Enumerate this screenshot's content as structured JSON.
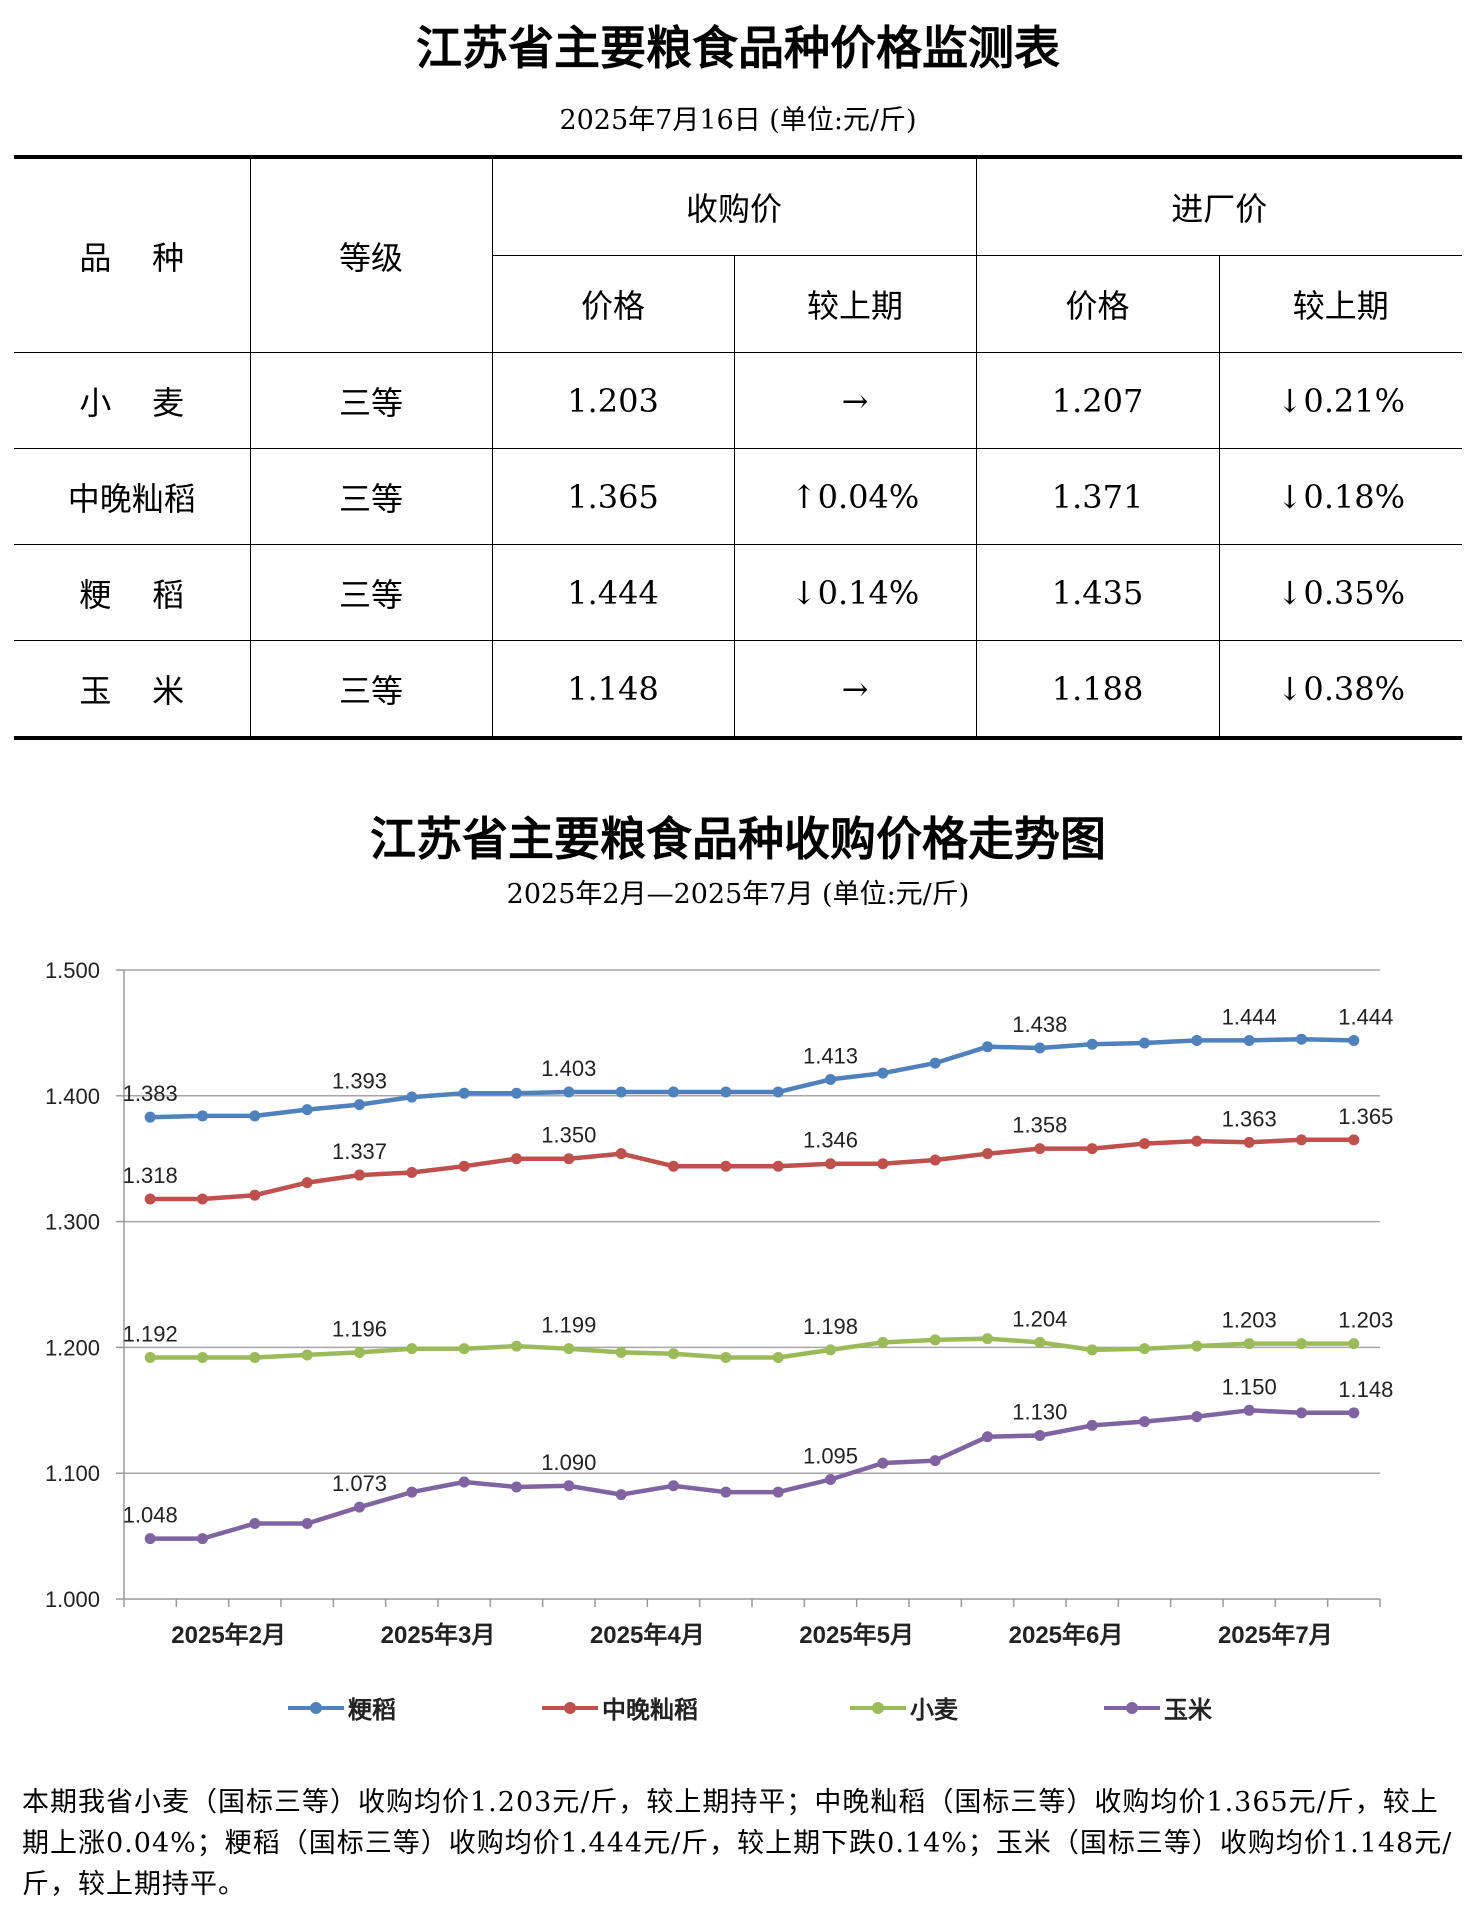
{
  "table_title": "江苏省主要粮食品种价格监测表",
  "table_subtitle": "2025年7月16日  (单位:元/斤)",
  "table": {
    "col_variety": "品    种",
    "col_grade": "等级",
    "col_purchase": "收购价",
    "col_factory": "进厂价",
    "col_price": "价格",
    "col_change": "较上期",
    "rows": [
      {
        "variety": "小    麦",
        "grade": "三等",
        "purchase_price": "1.203",
        "purchase_change": "→",
        "factory_price": "1.207",
        "factory_change": "↓0.21%"
      },
      {
        "variety": "中晚籼稻",
        "grade": "三等",
        "purchase_price": "1.365",
        "purchase_change": "↑0.04%",
        "factory_price": "1.371",
        "factory_change": "↓0.18%"
      },
      {
        "variety": "粳    稻",
        "grade": "三等",
        "purchase_price": "1.444",
        "purchase_change": "↓0.14%",
        "factory_price": "1.435",
        "factory_change": "↓0.35%"
      },
      {
        "variety": "玉    米",
        "grade": "三等",
        "purchase_price": "1.148",
        "purchase_change": "→",
        "factory_price": "1.188",
        "factory_change": "↓0.38%"
      }
    ]
  },
  "chart_title": "江苏省主要粮食品种收购价格走势图",
  "chart_subtitle": "2025年2月—2025年7月  (单位:元/斤)",
  "chart_data": {
    "type": "line",
    "title": "江苏省主要粮食品种收购价格走势图",
    "subtitle": "2025年2月—2025年7月  (单位:元/斤)",
    "xlabel": "",
    "ylabel": "",
    "ylim": [
      1.0,
      1.5
    ],
    "yticks": [
      "1.000",
      "1.100",
      "1.200",
      "1.300",
      "1.400",
      "1.500"
    ],
    "x_month_labels": [
      "2025年2月",
      "2025年3月",
      "2025年4月",
      "2025年5月",
      "2025年6月",
      "2025年7月"
    ],
    "n_points": 24,
    "grid": true,
    "legend_position": "bottom",
    "series": [
      {
        "name": "粳稻",
        "color": "#4F81BD",
        "values": [
          1.383,
          1.384,
          1.384,
          1.389,
          1.393,
          1.399,
          1.402,
          1.402,
          1.403,
          1.403,
          1.403,
          1.403,
          1.403,
          1.413,
          1.418,
          1.426,
          1.439,
          1.438,
          1.441,
          1.442,
          1.444,
          1.444,
          1.445,
          1.444
        ],
        "labels": {
          "0": "1.383",
          "4": "1.393",
          "8": "1.403",
          "13": "1.413",
          "17": "1.438",
          "21": "1.444",
          "23": "1.444"
        }
      },
      {
        "name": "中晚籼稻",
        "color": "#C0504D",
        "values": [
          1.318,
          1.318,
          1.321,
          1.331,
          1.337,
          1.339,
          1.344,
          1.35,
          1.35,
          1.354,
          1.344,
          1.344,
          1.344,
          1.346,
          1.346,
          1.349,
          1.354,
          1.358,
          1.358,
          1.362,
          1.364,
          1.363,
          1.365,
          1.365
        ],
        "labels": {
          "0": "1.318",
          "4": "1.337",
          "8": "1.350",
          "13": "1.346",
          "17": "1.358",
          "21": "1.363",
          "23": "1.365"
        }
      },
      {
        "name": "小麦",
        "color": "#9BBB59",
        "values": [
          1.192,
          1.192,
          1.192,
          1.194,
          1.196,
          1.199,
          1.199,
          1.201,
          1.199,
          1.196,
          1.195,
          1.192,
          1.192,
          1.198,
          1.204,
          1.206,
          1.207,
          1.204,
          1.198,
          1.199,
          1.201,
          1.203,
          1.203,
          1.203
        ],
        "labels": {
          "0": "1.192",
          "4": "1.196",
          "8": "1.199",
          "13": "1.198",
          "17": "1.204",
          "21": "1.203",
          "23": "1.203"
        }
      },
      {
        "name": "玉米",
        "color": "#8064A2",
        "values": [
          1.048,
          1.048,
          1.06,
          1.06,
          1.073,
          1.085,
          1.093,
          1.089,
          1.09,
          1.083,
          1.09,
          1.085,
          1.085,
          1.095,
          1.108,
          1.11,
          1.129,
          1.13,
          1.138,
          1.141,
          1.145,
          1.15,
          1.148,
          1.148
        ],
        "labels": {
          "0": "1.048",
          "4": "1.073",
          "8": "1.090",
          "13": "1.095",
          "17": "1.130",
          "21": "1.150",
          "23": "1.148"
        }
      }
    ]
  },
  "note": "本期我省小麦（国标三等）收购均价1.203元/斤，较上期持平；中晚籼稻（国标三等）收购均价1.365元/斤，较上期上涨0.04%；粳稻（国标三等）收购均价1.444元/斤，较上期下跌0.14%；玉米（国标三等）收购均价1.148元/斤，较上期持平。"
}
